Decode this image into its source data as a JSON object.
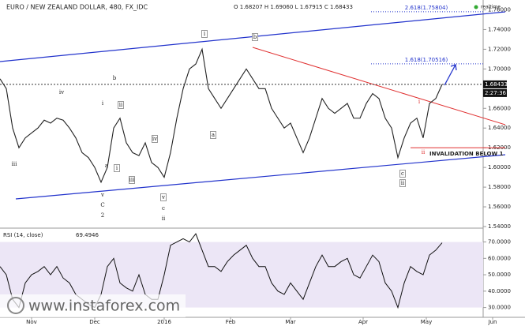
{
  "chart_data": [
    {
      "type": "line",
      "title": "EURO / NEW ZEALAND DOLLAR, 480, FX_IDC",
      "subtitle": "O 1.68207 H 1.69060 L 1.67915 C 1.68433",
      "realtime": "realtime",
      "timer": "2:27:36",
      "values": [
        1.69,
        1.68,
        1.64,
        1.62,
        1.63,
        1.635,
        1.64,
        1.648,
        1.645,
        1.65,
        1.648,
        1.64,
        1.63,
        1.615,
        1.61,
        1.6,
        1.585,
        1.6,
        1.64,
        1.65,
        1.625,
        1.615,
        1.612,
        1.625,
        1.605,
        1.6,
        1.59,
        1.615,
        1.65,
        1.68,
        1.7,
        1.705,
        1.72,
        1.68,
        1.67,
        1.66,
        1.67,
        1.68,
        1.69,
        1.7,
        1.69,
        1.68,
        1.68,
        1.66,
        1.65,
        1.64,
        1.645,
        1.63,
        1.615,
        1.63,
        1.65,
        1.67,
        1.66,
        1.655,
        1.66,
        1.665,
        1.65,
        1.65,
        1.665,
        1.675,
        1.67,
        1.65,
        1.64,
        1.61,
        1.63,
        1.645,
        1.65,
        1.63,
        1.665,
        1.67,
        1.68433
      ],
      "color": "#222",
      "xlim": [
        0,
        80
      ],
      "ylim": [
        1.54,
        1.77
      ],
      "yticks": [
        {
          "value": 1.76,
          "label": "1.76000"
        },
        {
          "value": 1.74,
          "label": "1.74000"
        },
        {
          "value": 1.72,
          "label": "1.72000"
        },
        {
          "value": 1.7,
          "label": "1.70000"
        },
        {
          "value": 1.66,
          "label": "1.66000"
        },
        {
          "value": 1.64,
          "label": "1.64000"
        },
        {
          "value": 1.62,
          "label": "1.62000"
        },
        {
          "value": 1.6,
          "label": "1.60000"
        },
        {
          "value": 1.58,
          "label": "1.58000"
        },
        {
          "value": 1.56,
          "label": "1.56000"
        },
        {
          "value": 1.54,
          "label": "1.54000"
        }
      ],
      "last_value": {
        "value": 1.68433,
        "label": "1.68433"
      },
      "fib_levels": [
        {
          "value": 1.75804,
          "label": "2.618(1.75804)"
        },
        {
          "value": 1.70516,
          "label": "1.618(1.70516)"
        }
      ],
      "invalidation": {
        "value": 1.62,
        "label": "INVALIDATION BELOW 1"
      },
      "annotations": [
        "iv",
        "b",
        "i",
        "ii",
        "iii",
        "a",
        "i",
        "iii",
        "iv",
        "v",
        "c",
        "ii",
        "v",
        "C",
        "2",
        "i",
        "b",
        "a",
        "i",
        "ii",
        "c",
        "ii"
      ]
    },
    {
      "type": "line",
      "title": "RSI (14, close)",
      "last_value": 69.4946,
      "values": [
        55,
        50,
        35,
        30,
        45,
        50,
        52,
        55,
        50,
        55,
        48,
        45,
        38,
        35,
        32,
        30,
        38,
        55,
        60,
        45,
        42,
        40,
        50,
        38,
        35,
        35,
        50,
        68,
        70,
        72,
        70,
        75,
        65,
        55,
        55,
        52,
        58,
        62,
        65,
        68,
        60,
        55,
        55,
        45,
        40,
        38,
        45,
        40,
        35,
        45,
        55,
        62,
        55,
        55,
        58,
        60,
        50,
        48,
        55,
        62,
        58,
        45,
        40,
        30,
        45,
        55,
        52,
        50,
        62,
        65,
        69.4946
      ],
      "color": "#111",
      "xlim": [
        0,
        80
      ],
      "ylim": [
        25,
        77
      ],
      "band": [
        30,
        70
      ],
      "yticks": [
        {
          "value": 70,
          "label": "70.0000"
        },
        {
          "value": 60,
          "label": "60.0000"
        },
        {
          "value": 50,
          "label": "50.0000"
        },
        {
          "value": 40,
          "label": "40.0000"
        },
        {
          "value": 30,
          "label": "30.0000"
        }
      ],
      "xticks": [
        {
          "value": 5,
          "label": "Nov"
        },
        {
          "value": 15,
          "label": "Dec"
        },
        {
          "value": 26,
          "label": "2016"
        },
        {
          "value": 36.5,
          "label": "Feb"
        },
        {
          "value": 46,
          "label": "Mar"
        },
        {
          "value": 57.5,
          "label": "Apr"
        },
        {
          "value": 67.5,
          "label": "May"
        },
        {
          "value": 78,
          "label": "Jun"
        }
      ]
    },
    {
      "watermark": "www.instaforex.com"
    }
  ]
}
